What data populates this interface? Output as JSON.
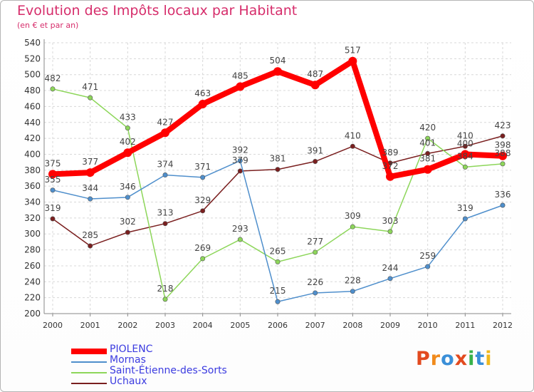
{
  "title": "Evolution des Impôts locaux par Habitant",
  "subtitle": "(en € et par an)",
  "brand": {
    "text": "Proxiti",
    "colors": [
      "#e24a1f",
      "#f08a1c",
      "#3a8fd8",
      "#e24a1f",
      "#38b24a",
      "#3a8fd8",
      "#f0b81c"
    ]
  },
  "chart_data": {
    "type": "line",
    "x": [
      "2000",
      "2001",
      "2002",
      "2003",
      "2004",
      "2005",
      "2006",
      "2007",
      "2008",
      "2009",
      "2010",
      "2011",
      "2012"
    ],
    "ylim": [
      200,
      540
    ],
    "yticks": [
      200,
      220,
      240,
      260,
      280,
      300,
      320,
      340,
      360,
      380,
      400,
      420,
      440,
      460,
      480,
      500,
      520,
      540
    ],
    "grid": true,
    "legend_position": "bottom",
    "series": [
      {
        "name": "PIOLENC",
        "color": "#ff0000",
        "width": 8,
        "values": [
          375,
          377,
          402,
          427,
          463,
          485,
          504,
          487,
          517,
          372,
          381,
          400,
          398
        ]
      },
      {
        "name": "Mornas",
        "color": "#4f8fcc",
        "width": 1.5,
        "values": [
          355,
          344,
          346,
          374,
          371,
          392,
          215,
          226,
          228,
          244,
          259,
          319,
          336
        ]
      },
      {
        "name": "Saint-Étienne-des-Sorts",
        "color": "#8dd65a",
        "width": 1.5,
        "values": [
          482,
          471,
          433,
          218,
          269,
          293,
          265,
          277,
          309,
          303,
          420,
          384,
          388
        ]
      },
      {
        "name": "Uchaux",
        "color": "#7a1f1f",
        "width": 1.5,
        "values": [
          319,
          285,
          302,
          313,
          329,
          379,
          381,
          391,
          410,
          389,
          401,
          410,
          423
        ]
      }
    ],
    "data_labels": [
      {
        "series": 0,
        "labels": [
          "375",
          "377",
          "402",
          "427",
          "463",
          "485",
          "504",
          "487",
          "517",
          "372",
          "381",
          "400",
          "398"
        ]
      },
      {
        "series": 1,
        "labels": [
          "355",
          "344",
          "346",
          "374",
          "371",
          "392",
          "215",
          "226",
          "228",
          "244",
          "259",
          "319",
          "336"
        ]
      },
      {
        "series": 2,
        "labels": [
          "482",
          "471",
          "433",
          "218",
          "269",
          "293",
          "265",
          "277",
          "309",
          "303",
          "420",
          "384",
          "388"
        ]
      },
      {
        "series": 3,
        "labels": [
          "319",
          "285",
          "302",
          "313",
          "329",
          "379",
          "381",
          "391",
          "410",
          "389",
          "401",
          "410",
          "423"
        ]
      }
    ]
  }
}
